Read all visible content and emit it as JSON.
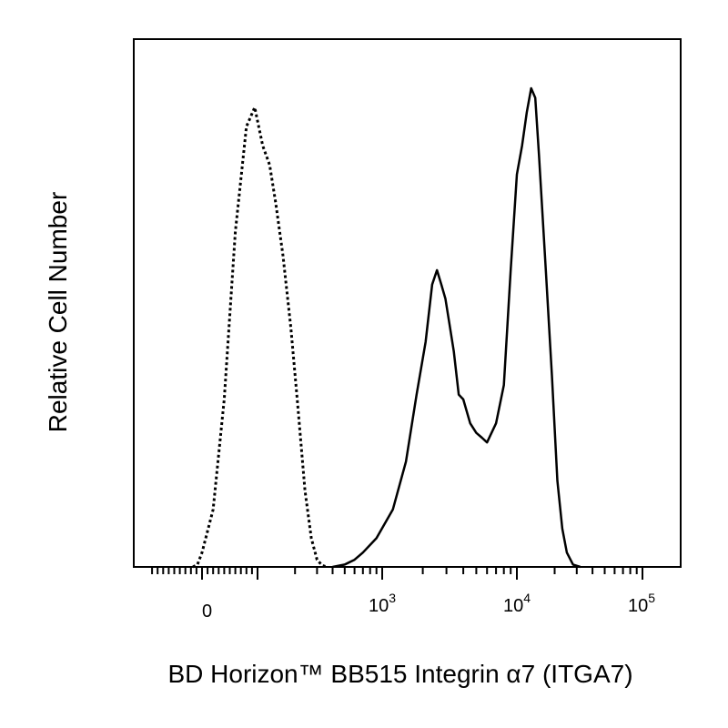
{
  "chart_data": {
    "type": "line",
    "title": "",
    "xlabel": "BD Horizon™ BB515 Integrin α7 (ITGA7)",
    "ylabel": "Relative Cell Number",
    "xscale": "biexponential",
    "ylim": [
      0,
      100
    ],
    "grid": false,
    "legend": "none",
    "x_ticks": [
      {
        "base": "0",
        "exp": ""
      },
      {
        "base": "10",
        "exp": "3"
      },
      {
        "base": "10",
        "exp": "4"
      },
      {
        "base": "10",
        "exp": "5"
      }
    ],
    "series": [
      {
        "style": "dotted",
        "color": "#000000",
        "points": [
          [
            -40,
            0
          ],
          [
            -20,
            0.5
          ],
          [
            0,
            3
          ],
          [
            20,
            12
          ],
          [
            40,
            35
          ],
          [
            60,
            70
          ],
          [
            80,
            92
          ],
          [
            95,
            96
          ],
          [
            110,
            88
          ],
          [
            125,
            84
          ],
          [
            140,
            76
          ],
          [
            160,
            65
          ],
          [
            185,
            50
          ],
          [
            210,
            34
          ],
          [
            240,
            16
          ],
          [
            270,
            6
          ],
          [
            300,
            1.5
          ],
          [
            330,
            0.3
          ],
          [
            360,
            0
          ]
        ]
      },
      {
        "style": "solid",
        "color": "#000000",
        "points": [
          [
            400,
            0
          ],
          [
            500,
            0.5
          ],
          [
            600,
            1.5
          ],
          [
            700,
            3
          ],
          [
            900,
            6
          ],
          [
            1200,
            12
          ],
          [
            1500,
            22
          ],
          [
            1800,
            36
          ],
          [
            2100,
            47
          ],
          [
            2350,
            59
          ],
          [
            2550,
            62
          ],
          [
            2750,
            59
          ],
          [
            2950,
            56
          ],
          [
            3150,
            51
          ],
          [
            3400,
            45
          ],
          [
            3700,
            36
          ],
          [
            4000,
            35
          ],
          [
            4500,
            30
          ],
          [
            5000,
            28
          ],
          [
            5500,
            27
          ],
          [
            6000,
            26
          ],
          [
            7000,
            30
          ],
          [
            8000,
            38
          ],
          [
            9000,
            62
          ],
          [
            10000,
            82
          ],
          [
            11000,
            88
          ],
          [
            12000,
            95
          ],
          [
            13000,
            100
          ],
          [
            14000,
            98
          ],
          [
            15000,
            86
          ],
          [
            17000,
            62
          ],
          [
            19000,
            40
          ],
          [
            21000,
            18
          ],
          [
            23000,
            8
          ],
          [
            25000,
            3
          ],
          [
            28000,
            0.5
          ],
          [
            32000,
            0
          ]
        ]
      }
    ]
  }
}
